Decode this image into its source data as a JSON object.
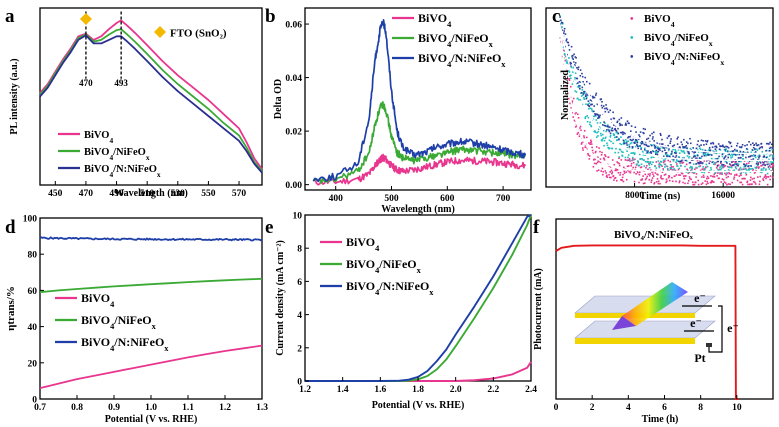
{
  "chart_data": [
    {
      "panel": "a",
      "type": "line",
      "xlabel": "Wavelength (nm)",
      "ylabel": "PL intensity (a.u.)",
      "xlim": [
        440,
        585
      ],
      "ylim": [
        0,
        1
      ],
      "xticks": [
        450,
        470,
        490,
        510,
        530,
        550,
        570
      ],
      "annotation": "FTO (SnO₂)",
      "peak_labels": [
        "470",
        "493"
      ],
      "peaks": [
        470,
        493
      ],
      "legend": "bottom-left",
      "x": [
        440,
        445,
        450,
        455,
        460,
        465,
        470,
        475,
        480,
        485,
        490,
        493,
        497,
        502,
        510,
        520,
        530,
        540,
        550,
        560,
        570,
        575,
        580,
        585
      ],
      "series": [
        {
          "name": "BiVO4",
          "color": "#e8368f",
          "values": [
            0.52,
            0.57,
            0.64,
            0.71,
            0.77,
            0.84,
            0.855,
            0.82,
            0.84,
            0.88,
            0.915,
            0.93,
            0.9,
            0.86,
            0.79,
            0.7,
            0.62,
            0.55,
            0.48,
            0.4,
            0.32,
            0.24,
            0.15,
            0.09
          ]
        },
        {
          "name": "BiVO4/NiFeOx",
          "color": "#3aaa35",
          "values": [
            0.51,
            0.56,
            0.63,
            0.7,
            0.76,
            0.83,
            0.85,
            0.81,
            0.82,
            0.85,
            0.875,
            0.88,
            0.85,
            0.81,
            0.74,
            0.65,
            0.57,
            0.5,
            0.43,
            0.35,
            0.28,
            0.21,
            0.13,
            0.08
          ]
        },
        {
          "name": "BiVO4/N:NiFeOx",
          "color": "#2b2f8f",
          "values": [
            0.5,
            0.55,
            0.62,
            0.69,
            0.75,
            0.82,
            0.845,
            0.8,
            0.8,
            0.82,
            0.84,
            0.84,
            0.81,
            0.77,
            0.7,
            0.61,
            0.53,
            0.46,
            0.39,
            0.32,
            0.25,
            0.19,
            0.12,
            0.07
          ]
        }
      ]
    },
    {
      "panel": "b",
      "type": "line",
      "xlabel": "Wavelength (nm)",
      "ylabel": "Delta OD",
      "xlim": [
        345,
        750
      ],
      "ylim": [
        -0.002,
        0.066
      ],
      "xticks": [
        400,
        500,
        600,
        700
      ],
      "yticks": [
        0,
        0.02,
        0.04,
        0.06
      ],
      "ytick_labels": [
        "0.00",
        "0.02",
        "0.04",
        "0.06"
      ],
      "legend": "top-right",
      "x": [
        360,
        400,
        440,
        460,
        470,
        480,
        485,
        490,
        500,
        510,
        520,
        540,
        560,
        580,
        600,
        620,
        640,
        660,
        680,
        700,
        720,
        740
      ],
      "series": [
        {
          "name": "BiVO4",
          "color": "#e8368f",
          "values": [
            0.001,
            0.001,
            0.002,
            0.004,
            0.007,
            0.0095,
            0.01,
            0.0095,
            0.007,
            0.0055,
            0.005,
            0.0055,
            0.0065,
            0.0075,
            0.0085,
            0.009,
            0.009,
            0.0088,
            0.0085,
            0.008,
            0.0075,
            0.007
          ]
        },
        {
          "name": "BiVO4/NiFeOx",
          "color": "#3aaa35",
          "values": [
            0.001,
            0.002,
            0.005,
            0.012,
            0.022,
            0.029,
            0.03,
            0.028,
            0.018,
            0.012,
            0.01,
            0.009,
            0.01,
            0.011,
            0.012,
            0.013,
            0.013,
            0.0125,
            0.012,
            0.0115,
            0.011,
            0.0105
          ]
        },
        {
          "name": "BiVO4/N:NiFeOx",
          "color": "#1f3fa8",
          "values": [
            0.002,
            0.003,
            0.008,
            0.025,
            0.046,
            0.058,
            0.061,
            0.057,
            0.035,
            0.02,
            0.014,
            0.011,
            0.012,
            0.014,
            0.015,
            0.016,
            0.0158,
            0.015,
            0.014,
            0.013,
            0.012,
            0.011
          ]
        }
      ]
    },
    {
      "panel": "c",
      "type": "scatter",
      "xlabel": "Time (ns)",
      "ylabel": "Normalized",
      "xlim": [
        0,
        20500
      ],
      "ylim": [
        -0.05,
        1.1
      ],
      "xticks": [
        8000,
        16000
      ],
      "legend": "top-right",
      "series": [
        {
          "name": "BiVO4",
          "color": "#e8368f",
          "tau_ns": 1400,
          "plateau": 0.05
        },
        {
          "name": "BiVO4/NiFeOx",
          "color": "#1fbfbf",
          "tau_ns": 2500,
          "plateau": 0.12
        },
        {
          "name": "BiVO4/N:NiFeOx",
          "color": "#2e3fa0",
          "tau_ns": 3400,
          "plateau": 0.16
        }
      ],
      "fit_lines": {
        "color": "#ffffff"
      }
    },
    {
      "panel": "d",
      "type": "line",
      "xlabel": "Potential (V vs. RHE)",
      "ylabel": "ηtrans/%",
      "xlim": [
        0.7,
        1.3
      ],
      "ylim": [
        0,
        100
      ],
      "xticks": [
        0.7,
        0.8,
        0.9,
        1.0,
        1.1,
        1.2,
        1.3
      ],
      "yticks": [
        0,
        20,
        40,
        60,
        80,
        100
      ],
      "legend": "middle-left",
      "x": [
        0.7,
        0.75,
        0.8,
        0.85,
        0.9,
        0.95,
        1.0,
        1.05,
        1.1,
        1.15,
        1.2,
        1.25,
        1.3
      ],
      "series": [
        {
          "name": "BiVO4",
          "color": "#e8368f",
          "values": [
            6,
            8.5,
            11,
            13,
            15,
            17,
            19,
            21,
            23,
            24.8,
            26.5,
            28,
            29.5
          ]
        },
        {
          "name": "BiVO4/NiFeOx",
          "color": "#3aaa35",
          "values": [
            59,
            60,
            60.8,
            61.5,
            62.2,
            62.8,
            63.4,
            64,
            64.6,
            65.1,
            65.6,
            66,
            66.4
          ]
        },
        {
          "name": "BiVO4/N:NiFeOx",
          "color": "#1f3fa8",
          "values": [
            89,
            88.8,
            88.6,
            88.5,
            88.4,
            88.3,
            88.3,
            88.2,
            88.2,
            88.1,
            88.1,
            88,
            88
          ]
        }
      ]
    },
    {
      "panel": "e",
      "type": "line",
      "xlabel": "Potential (V vs. RHE)",
      "ylabel": "Current density (mA cm⁻²)",
      "xlim": [
        1.2,
        2.4
      ],
      "ylim": [
        0,
        10
      ],
      "xticks": [
        1.2,
        1.4,
        1.6,
        1.8,
        2.0,
        2.2,
        2.4
      ],
      "yticks": [
        0,
        2,
        4,
        6,
        8,
        10
      ],
      "legend": "top-left",
      "x": [
        1.2,
        1.6,
        1.7,
        1.75,
        1.8,
        1.85,
        1.9,
        1.95,
        2.0,
        2.1,
        2.2,
        2.3,
        2.38,
        2.4
      ],
      "series": [
        {
          "name": "BiVO4",
          "color": "#e8368f",
          "values": [
            0,
            0,
            0,
            0,
            0,
            0,
            0,
            0,
            0,
            0.05,
            0.15,
            0.4,
            0.8,
            1.15
          ]
        },
        {
          "name": "BiVO4/NiFeOx",
          "color": "#3aaa35",
          "values": [
            0,
            0,
            0,
            0.02,
            0.1,
            0.3,
            0.7,
            1.3,
            2.1,
            3.8,
            5.6,
            7.6,
            9.4,
            10
          ]
        },
        {
          "name": "BiVO4/N:NiFeOx",
          "color": "#1f3fa8",
          "values": [
            0,
            0,
            0.02,
            0.08,
            0.25,
            0.6,
            1.2,
            1.9,
            2.8,
            4.5,
            6.3,
            8.3,
            9.9,
            10
          ]
        }
      ]
    },
    {
      "panel": "f",
      "type": "line",
      "xlabel": "Time (h)",
      "ylabel": "Photocurrent (mA)",
      "xlim": [
        0,
        12
      ],
      "ylim": [
        0,
        45
      ],
      "xticks": [
        0,
        2,
        4,
        6,
        8,
        10
      ],
      "title": "BiVO₄/N:NiFeOₓ",
      "inset_labels": [
        "e⁻",
        "e⁻",
        "e⁻",
        "Pt"
      ],
      "x": [
        0,
        0.3,
        1,
        2,
        3,
        4,
        5,
        6,
        7,
        8,
        9,
        9.9,
        9.92,
        9.95,
        10.05,
        10.1
      ],
      "series": [
        {
          "name": "BiVO4/N:NiFeOx",
          "color": "#e31a1c",
          "values": [
            37,
            37.8,
            38.3,
            38.4,
            38.4,
            38.4,
            38.4,
            38.4,
            38.4,
            38.3,
            38.3,
            38.3,
            38.3,
            0,
            0,
            0
          ]
        }
      ]
    }
  ],
  "panel_letters": [
    "a",
    "b",
    "c",
    "d",
    "e",
    "f"
  ]
}
